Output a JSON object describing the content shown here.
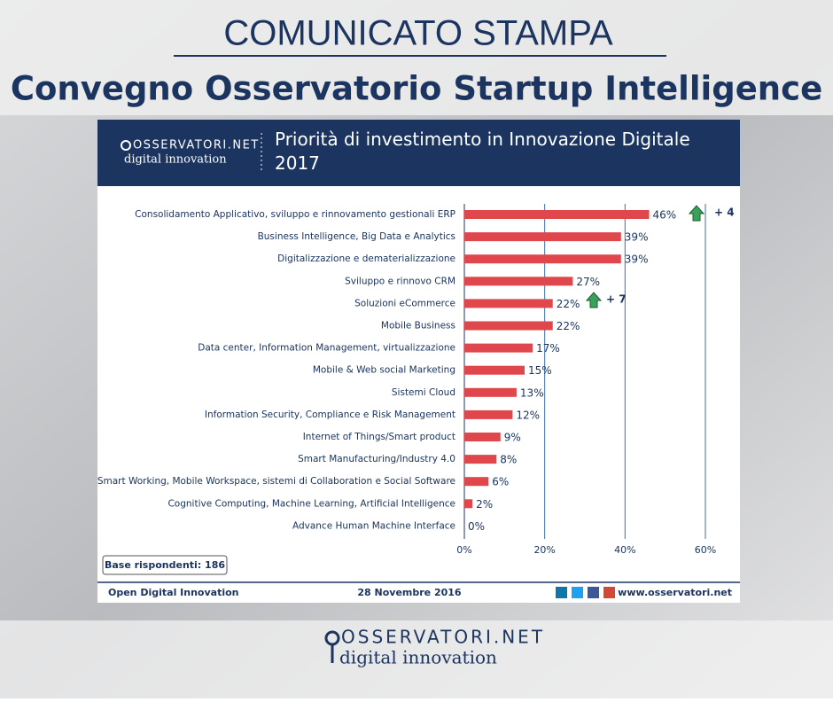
{
  "header": {
    "kicker": "COMUNICATO STAMPA",
    "headline": "Convegno Osservatorio Startup Intelligence"
  },
  "logo": {
    "name": "OSSERVATORI.NET",
    "tagline": "digital innovation"
  },
  "chart_data": {
    "type": "hbar",
    "title": "Priorità di investimento in Innovazione Digitale 2017",
    "categories": [
      "Consolidamento Applicativo, sviluppo e rinnovamento gestionali ERP",
      "Business Intelligence, Big Data e Analytics",
      "Digitalizzazione e dematerializzazione",
      "Sviluppo e rinnovo CRM",
      "Soluzioni eCommerce",
      "Mobile Business",
      "Data center, Information Management, virtualizzazione",
      "Mobile & Web social Marketing",
      "Sistemi Cloud",
      "Information Security, Compliance e Risk Management",
      "Internet of Things/Smart product",
      "Smart Manufacturing/Industry 4.0",
      "Smart Working, Mobile Workspace, sistemi di Collaboration e Social Software",
      "Cognitive Computing, Machine Learning, Artificial Intelligence",
      "Advance Human Machine Interface"
    ],
    "values": [
      46,
      39,
      39,
      27,
      22,
      22,
      17,
      15,
      13,
      12,
      9,
      8,
      6,
      2,
      0
    ],
    "value_labels": [
      "46%",
      "39%",
      "39%",
      "27%",
      "22%",
      "22%",
      "17%",
      "15%",
      "13%",
      "12%",
      "9%",
      "8%",
      "6%",
      "2%",
      "0%"
    ],
    "color": "#e0474c",
    "xlim": [
      0,
      60
    ],
    "xticks": [
      {
        "value": 0,
        "label": "0%"
      },
      {
        "value": 20,
        "label": "20%"
      },
      {
        "value": 40,
        "label": "40%"
      },
      {
        "value": 60,
        "label": "60%"
      }
    ],
    "grid": true,
    "annotations": [
      "+ 4",
      "+ 7"
    ],
    "note": "Base rispondenti: 186"
  },
  "footer": {
    "left": "Open Digital Innovation",
    "date": "28 Novembre 2016",
    "url": "www.osservatori.net"
  }
}
